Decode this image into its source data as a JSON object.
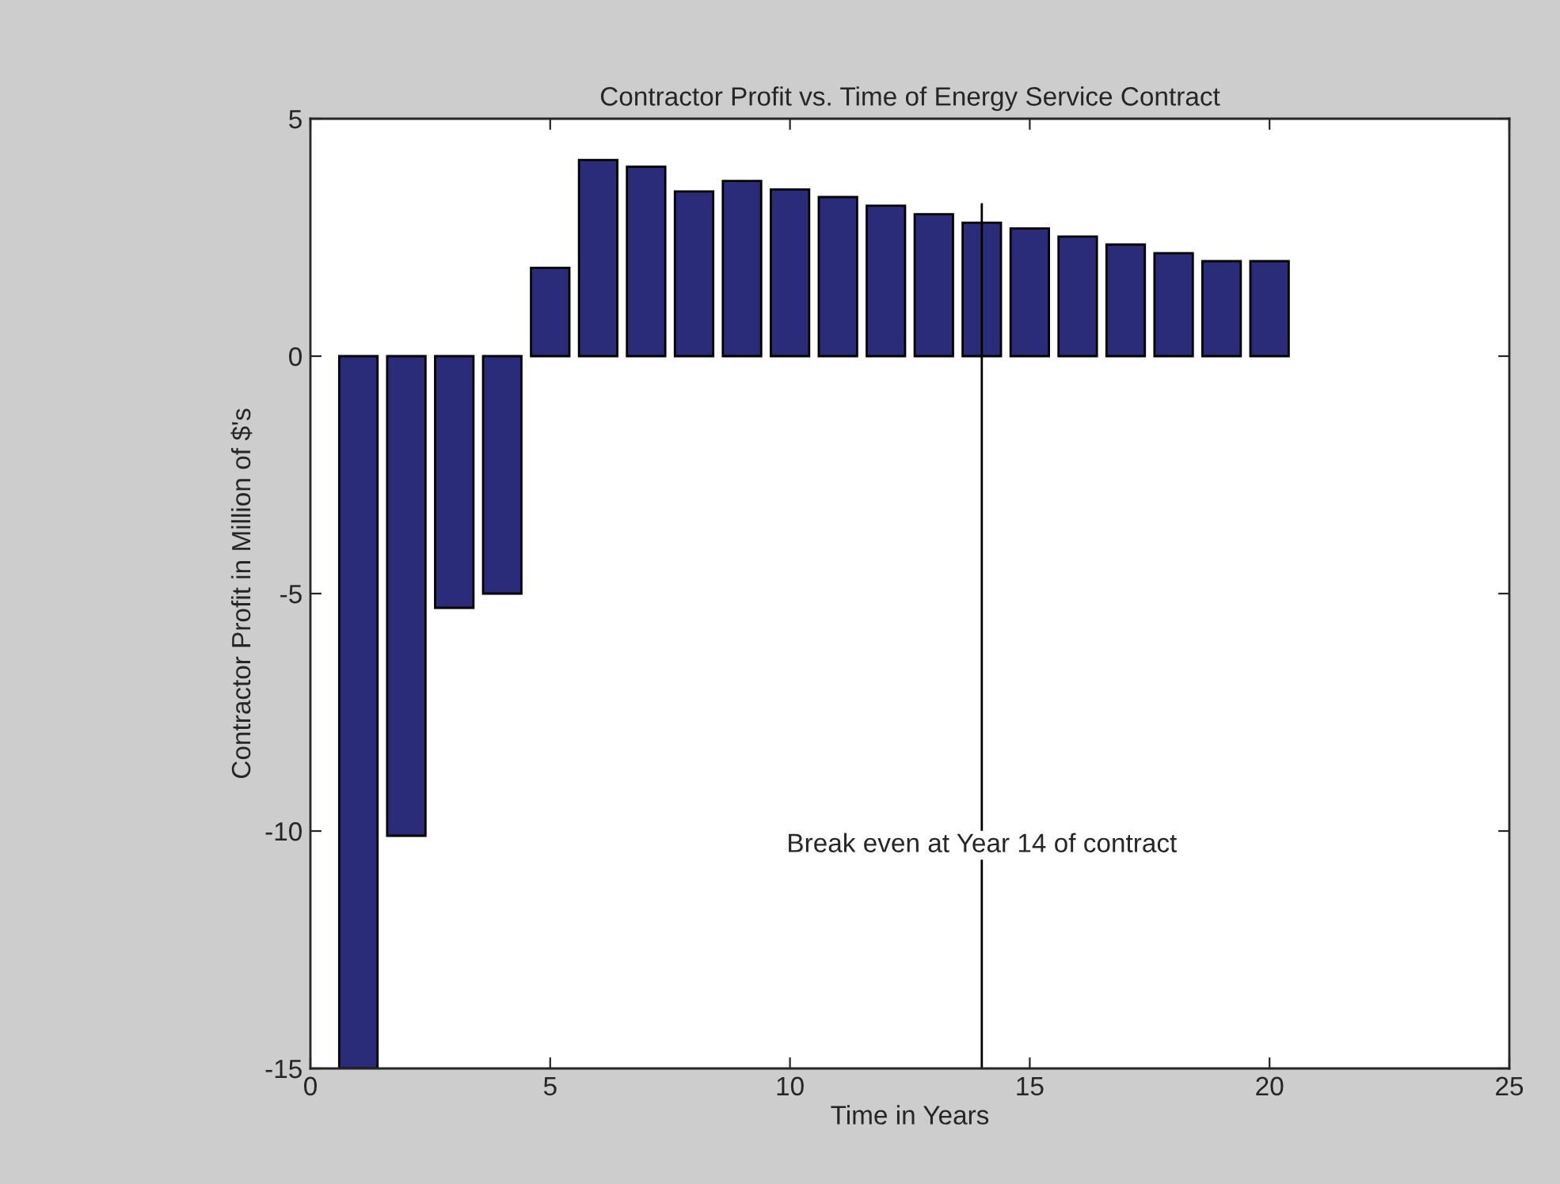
{
  "chart_data": {
    "type": "bar",
    "title": "Contractor Profit vs. Time of Energy Service Contract",
    "xlabel": "Time in Years",
    "ylabel": "Contractor Profit in Million of $'s",
    "x": [
      1,
      2,
      3,
      4,
      5,
      6,
      7,
      8,
      9,
      10,
      11,
      12,
      13,
      14,
      15,
      16,
      17,
      18,
      19,
      20
    ],
    "values": [
      -15,
      -10.1,
      -5.3,
      -5.0,
      1.86,
      4.13,
      3.99,
      3.47,
      3.69,
      3.51,
      3.35,
      3.17,
      2.99,
      2.81,
      2.69,
      2.52,
      2.35,
      2.17,
      2.0,
      2.0
    ],
    "color": "#2a2c7a",
    "xlim": [
      0,
      25
    ],
    "xticks": [
      0,
      5,
      10,
      15,
      20,
      25
    ],
    "ylim": [
      -15,
      5
    ],
    "yticks": [
      -15,
      -10,
      -5,
      0,
      5
    ],
    "ref_lines": [
      {
        "axis": "x",
        "value": 14,
        "color": "#000000",
        "label": "Break even at Year 14 of contract"
      }
    ],
    "grid": false,
    "legend": false
  }
}
